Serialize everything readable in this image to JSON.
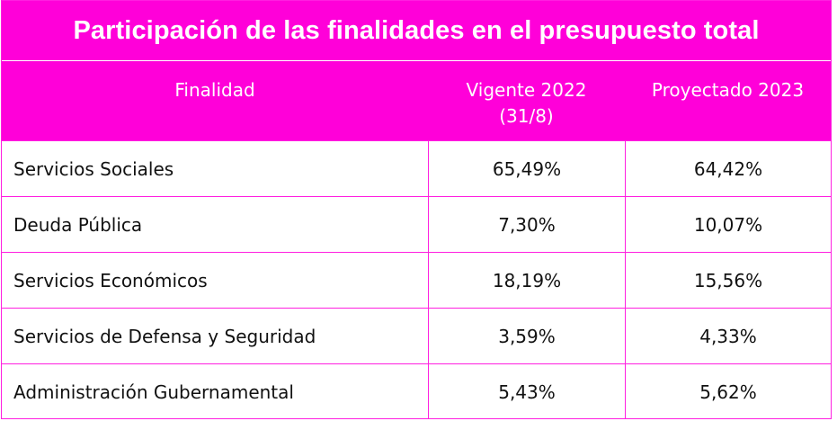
{
  "title": "Participación de las finalidades en el presupuesto total",
  "colors": {
    "header_bg": "#ff00d9",
    "header_text": "#ffffff",
    "grid_line": "#ff1fe0",
    "body_text": "#111111",
    "body_bg": "#ffffff"
  },
  "table": {
    "headers": {
      "finalidad": "Finalidad",
      "vigente": "Vigente 2022\n(31/8)",
      "proyectado": "Proyectado 2023"
    },
    "rows": [
      {
        "finalidad": "Servicios Sociales",
        "vigente": "65,49%",
        "proyectado": "64,42%"
      },
      {
        "finalidad": "Deuda Pública",
        "vigente": "7,30%",
        "proyectado": "10,07%"
      },
      {
        "finalidad": "Servicios Económicos",
        "vigente": "18,19%",
        "proyectado": "15,56%"
      },
      {
        "finalidad": "Servicios de Defensa y Seguridad",
        "vigente": "3,59%",
        "proyectado": "4,33%"
      },
      {
        "finalidad": "Administración Gubernamental",
        "vigente": "5,43%",
        "proyectado": "5,62%"
      }
    ]
  },
  "chart_data": {
    "type": "table",
    "title": "Participación de las finalidades en el presupuesto total",
    "columns": [
      "Finalidad",
      "Vigente 2022\n(31/8)",
      "Proyectado 2023"
    ],
    "categories": [
      "Servicios Sociales",
      "Deuda Pública",
      "Servicios Económicos",
      "Servicios de Defensa y Seguridad",
      "Administración Gubernamental"
    ],
    "series": [
      {
        "name": "Vigente 2022\n(31/8)",
        "values": [
          65.49,
          7.3,
          18.19,
          3.59,
          5.43
        ]
      },
      {
        "name": "Proyectado 2023",
        "values": [
          64.42,
          10.07,
          15.56,
          4.33,
          5.62
        ]
      }
    ]
  }
}
